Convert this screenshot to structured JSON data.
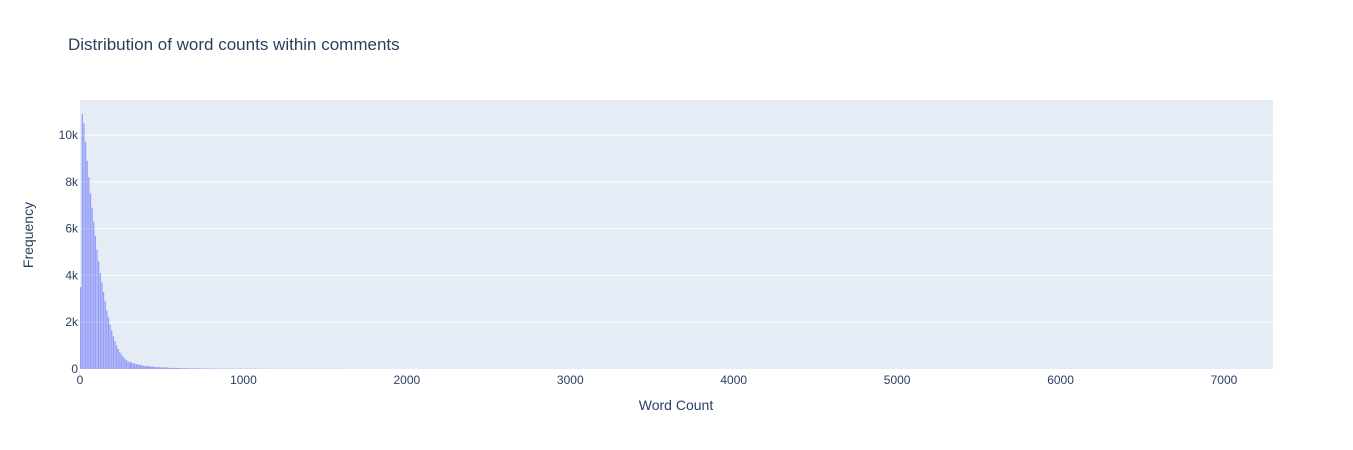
{
  "chart_data": {
    "type": "bar",
    "title": "Distribution of word counts within comments",
    "xlabel": "Word Count",
    "ylabel": "Frequency",
    "xlim": [
      0,
      7300
    ],
    "ylim": [
      0,
      11500
    ],
    "x_ticks": [
      0,
      1000,
      2000,
      3000,
      4000,
      5000,
      6000,
      7000
    ],
    "x_tick_labels": [
      "0",
      "1000",
      "2000",
      "3000",
      "4000",
      "5000",
      "6000",
      "7000"
    ],
    "y_ticks": [
      0,
      2000,
      4000,
      6000,
      8000,
      10000
    ],
    "y_tick_labels": [
      "0",
      "2k",
      "4k",
      "6k",
      "8k",
      "10k"
    ],
    "grid": true,
    "bar_color": "#636efa",
    "bar_opacity": 0.6,
    "plot_background": "#e5ecf6",
    "bin_width": 10,
    "bins": [
      {
        "x": 0,
        "y": 3500
      },
      {
        "x": 10,
        "y": 10900
      },
      {
        "x": 20,
        "y": 10500
      },
      {
        "x": 30,
        "y": 9700
      },
      {
        "x": 40,
        "y": 8900
      },
      {
        "x": 50,
        "y": 8200
      },
      {
        "x": 60,
        "y": 7500
      },
      {
        "x": 70,
        "y": 6900
      },
      {
        "x": 80,
        "y": 6300
      },
      {
        "x": 90,
        "y": 5700
      },
      {
        "x": 100,
        "y": 5100
      },
      {
        "x": 110,
        "y": 4600
      },
      {
        "x": 120,
        "y": 4100
      },
      {
        "x": 130,
        "y": 3700
      },
      {
        "x": 140,
        "y": 3300
      },
      {
        "x": 150,
        "y": 2900
      },
      {
        "x": 160,
        "y": 2500
      },
      {
        "x": 170,
        "y": 2200
      },
      {
        "x": 180,
        "y": 1900
      },
      {
        "x": 190,
        "y": 1650
      },
      {
        "x": 200,
        "y": 1400
      },
      {
        "x": 210,
        "y": 1200
      },
      {
        "x": 220,
        "y": 1000
      },
      {
        "x": 230,
        "y": 850
      },
      {
        "x": 240,
        "y": 720
      },
      {
        "x": 250,
        "y": 610
      },
      {
        "x": 260,
        "y": 520
      },
      {
        "x": 270,
        "y": 440
      },
      {
        "x": 280,
        "y": 380
      },
      {
        "x": 290,
        "y": 330
      },
      {
        "x": 300,
        "y": 290
      },
      {
        "x": 320,
        "y": 240
      },
      {
        "x": 340,
        "y": 200
      },
      {
        "x": 360,
        "y": 170
      },
      {
        "x": 380,
        "y": 140
      },
      {
        "x": 400,
        "y": 120
      },
      {
        "x": 430,
        "y": 100
      },
      {
        "x": 460,
        "y": 80
      },
      {
        "x": 500,
        "y": 65
      },
      {
        "x": 540,
        "y": 50
      },
      {
        "x": 580,
        "y": 40
      },
      {
        "x": 620,
        "y": 32
      },
      {
        "x": 670,
        "y": 25
      },
      {
        "x": 720,
        "y": 20
      },
      {
        "x": 780,
        "y": 16
      },
      {
        "x": 850,
        "y": 12
      },
      {
        "x": 920,
        "y": 10
      },
      {
        "x": 1000,
        "y": 8
      },
      {
        "x": 1100,
        "y": 6
      },
      {
        "x": 1200,
        "y": 5
      },
      {
        "x": 1300,
        "y": 4
      },
      {
        "x": 1450,
        "y": 3
      },
      {
        "x": 1600,
        "y": 2
      }
    ]
  }
}
